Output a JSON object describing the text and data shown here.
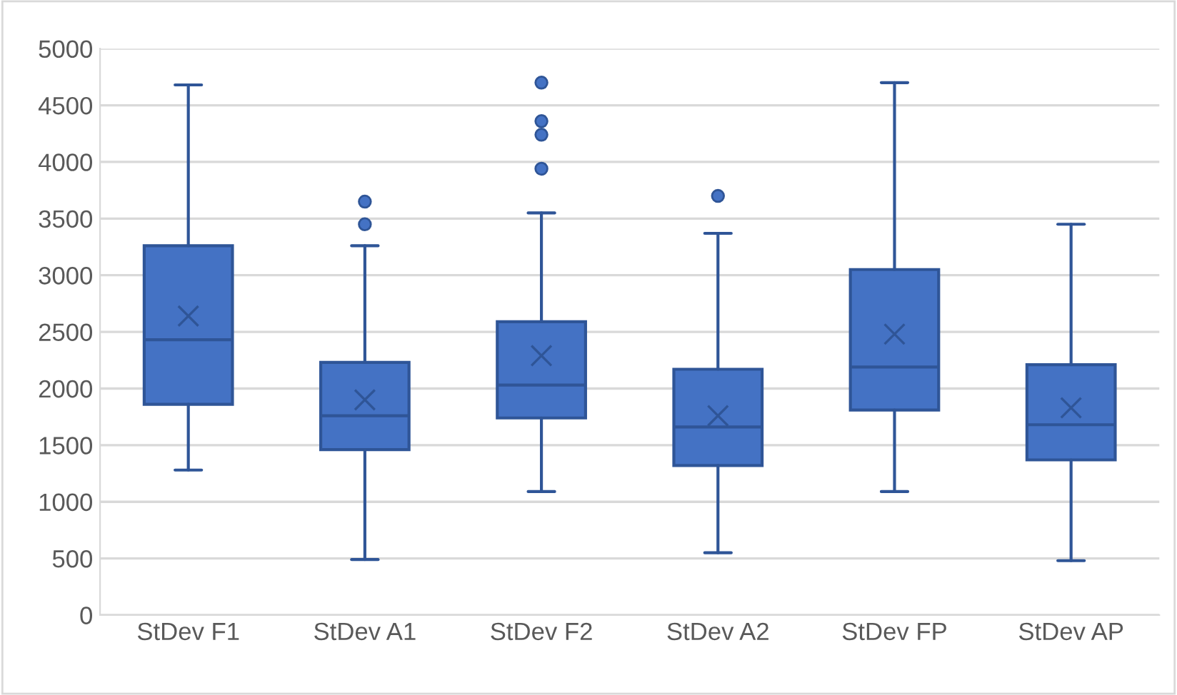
{
  "chart_data": {
    "type": "box",
    "categories": [
      "StDev F1",
      "StDev A1",
      "StDev F2",
      "StDev A2",
      "StDev FP",
      "StDev AP"
    ],
    "color": "#4472c4",
    "boxes": [
      {
        "low": 1280,
        "q1": 1860,
        "median": 2430,
        "q3": 3260,
        "high": 4680,
        "mean": 2640
      },
      {
        "low": 490,
        "q1": 1460,
        "median": 1760,
        "q3": 2230,
        "high": 3260,
        "mean": 1900,
        "outliers": [
          3450,
          3650
        ]
      },
      {
        "low": 1090,
        "q1": 1740,
        "median": 2030,
        "q3": 2590,
        "high": 3550,
        "mean": 2290,
        "outliers": [
          3940,
          4240,
          4360,
          4700
        ]
      },
      {
        "low": 550,
        "q1": 1320,
        "median": 1660,
        "q3": 2170,
        "high": 3370,
        "mean": 1760,
        "outliers": [
          3700
        ]
      },
      {
        "low": 1090,
        "q1": 1810,
        "median": 2190,
        "q3": 3050,
        "high": 4700,
        "mean": 2480
      },
      {
        "low": 480,
        "q1": 1370,
        "median": 1680,
        "q3": 2210,
        "high": 3450,
        "mean": 1830
      }
    ],
    "ylim": [
      0,
      5000
    ],
    "yticks": [
      0,
      500,
      1000,
      1500,
      2000,
      2500,
      3000,
      3500,
      4000,
      4500,
      5000
    ],
    "grid": "y"
  }
}
